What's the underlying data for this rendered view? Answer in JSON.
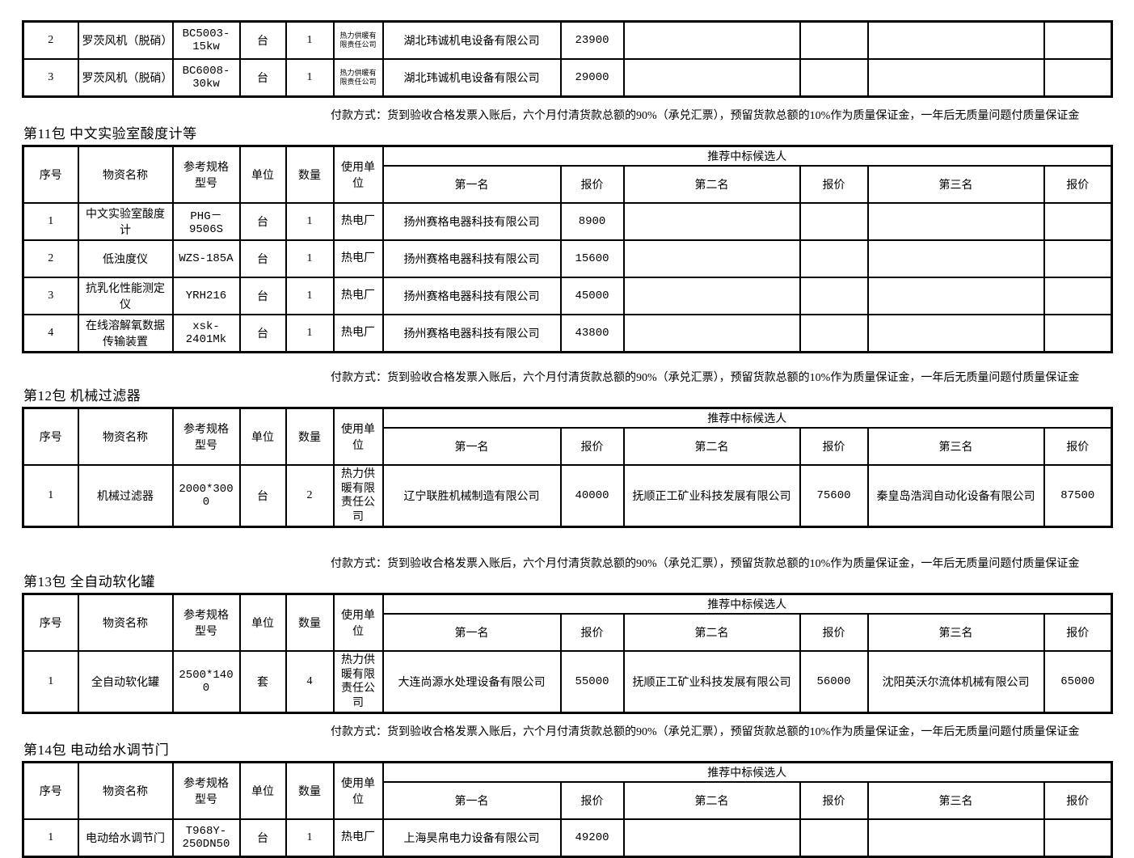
{
  "doc": {
    "payment_text": "付款方式：货到验收合格发票入账后，六个月付清货款总额的90%（承兑汇票），预留货款总额的10%作为质量保证金，一年后无质量问题付质量保证金",
    "columns": {
      "seq": "序号",
      "name": "物资名称",
      "spec": "参考规格\n型号",
      "unit": "单位",
      "qty": "数量",
      "user": "使用单位",
      "candidates": "推荐中标候选人",
      "first": "第一名",
      "quote": "报价",
      "second": "第二名",
      "third": "第三名"
    },
    "sections": [
      {
        "id": "continuation",
        "title": "",
        "has_payment": false,
        "has_header": false,
        "rows": [
          {
            "seq": "2",
            "name": "罗茨风机（脱硝）",
            "spec": "BC5003-15kw",
            "unit": "台",
            "qty": "1",
            "user": "热力供暖有限责任公司",
            "first": "湖北玮诚机电设备有限公司",
            "price1": "23900",
            "second": "",
            "price2": "",
            "third": "",
            "price3": ""
          },
          {
            "seq": "3",
            "name": "罗茨风机（脱硝）",
            "spec": "BC6008-30kw",
            "unit": "台",
            "qty": "1",
            "user": "热力供暖有限责任公司",
            "first": "湖北玮诚机电设备有限公司",
            "price1": "29000",
            "second": "",
            "price2": "",
            "third": "",
            "price3": ""
          }
        ]
      },
      {
        "id": "pkg-11",
        "title": "第11包 中文实验室酸度计等",
        "has_payment": true,
        "has_header": true,
        "rows": [
          {
            "seq": "1",
            "name": "中文实验室酸度计",
            "spec": "PHG－9506S",
            "unit": "台",
            "qty": "1",
            "user": "热电厂",
            "first": "扬州赛格电器科技有限公司",
            "price1": "8900",
            "second": "",
            "price2": "",
            "third": "",
            "price3": ""
          },
          {
            "seq": "2",
            "name": "低浊度仪",
            "spec": "WZS-185A",
            "unit": "台",
            "qty": "1",
            "user": "热电厂",
            "first": "扬州赛格电器科技有限公司",
            "price1": "15600",
            "second": "",
            "price2": "",
            "third": "",
            "price3": ""
          },
          {
            "seq": "3",
            "name": "抗乳化性能测定仪",
            "spec": "YRH216",
            "unit": "台",
            "qty": "1",
            "user": "热电厂",
            "first": "扬州赛格电器科技有限公司",
            "price1": "45000",
            "second": "",
            "price2": "",
            "third": "",
            "price3": ""
          },
          {
            "seq": "4",
            "name": "在线溶解氧数据传输装置",
            "spec": "xsk-2401Mk",
            "unit": "台",
            "qty": "1",
            "user": "热电厂",
            "first": "扬州赛格电器科技有限公司",
            "price1": "43800",
            "second": "",
            "price2": "",
            "third": "",
            "price3": ""
          }
        ]
      },
      {
        "id": "pkg-12",
        "title": "第12包 机械过滤器",
        "has_payment": true,
        "has_header": true,
        "rows": [
          {
            "seq": "1",
            "name": "机械过滤器",
            "spec": "2000*3000",
            "unit": "台",
            "qty": "2",
            "user": "热力供暖有限责任公司",
            "first": "辽宁联胜机械制造有限公司",
            "price1": "40000",
            "second": "抚顺正工矿业科技发展有限公司",
            "price2": "75600",
            "third": "秦皇岛浩润自动化设备有限公司",
            "price3": "87500"
          }
        ]
      },
      {
        "id": "pkg-13",
        "title": "第13包 全自动软化罐",
        "has_payment": true,
        "has_header": true,
        "rows": [
          {
            "seq": "1",
            "name": "全自动软化罐",
            "spec": "2500*1400",
            "unit": "套",
            "qty": "4",
            "user": "热力供暖有限责任公司",
            "first": "大连尚源水处理设备有限公司",
            "price1": "55000",
            "second": "抚顺正工矿业科技发展有限公司",
            "price2": "56000",
            "third": "沈阳英沃尔流体机械有限公司",
            "price3": "65000"
          }
        ]
      },
      {
        "id": "pkg-14",
        "title": "第14包 电动给水调节门",
        "has_payment": true,
        "has_header": true,
        "rows": [
          {
            "seq": "1",
            "name": "电动给水调节门",
            "spec": "T968Y-250DN50",
            "unit": "台",
            "qty": "1",
            "user": "热电厂",
            "first": "上海昊帛电力设备有限公司",
            "price1": "49200",
            "second": "",
            "price2": "",
            "third": "",
            "price3": ""
          }
        ]
      }
    ]
  }
}
